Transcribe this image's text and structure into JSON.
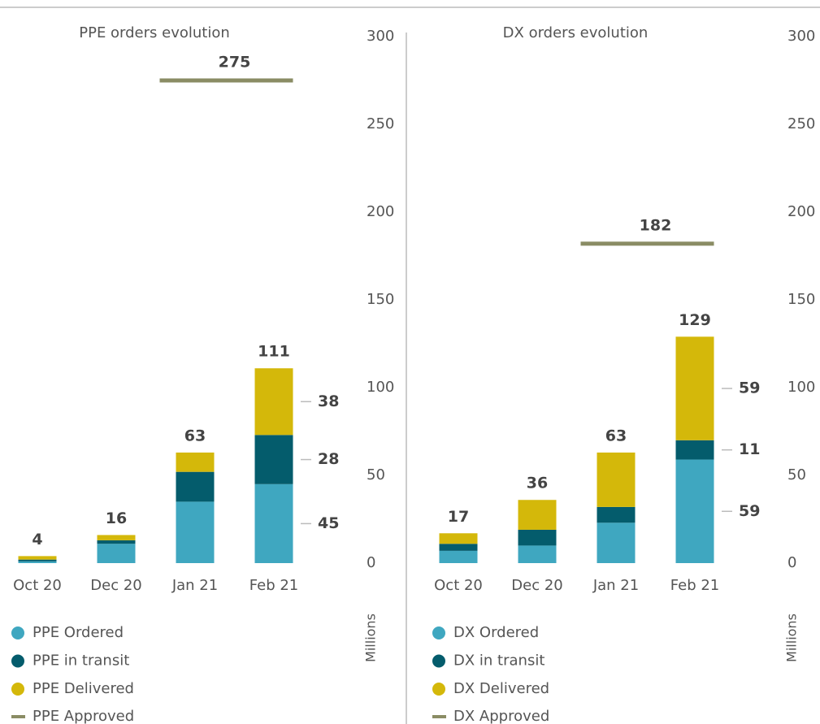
{
  "chart_data": [
    {
      "type": "bar",
      "stacked": true,
      "title": "PPE orders evolution",
      "y_label": "Millions",
      "categories": [
        "Oct 20",
        "Dec 20",
        "Jan 21",
        "Feb 21"
      ],
      "series": [
        {
          "name": "PPE Ordered",
          "color": "#3fa7c0",
          "values": [
            1,
            11,
            35,
            45
          ]
        },
        {
          "name": "PPE in transit",
          "color": "#045c6c",
          "values": [
            1,
            2,
            17,
            28
          ]
        },
        {
          "name": "PPE Delivered",
          "color": "#d4b80a",
          "values": [
            2,
            3,
            11,
            38
          ]
        }
      ],
      "totals": [
        4,
        16,
        63,
        111
      ],
      "approved": {
        "name": "PPE Approved",
        "color": "#8a8c64",
        "values": [
          null,
          null,
          275,
          275
        ]
      },
      "ylim": [
        0,
        300
      ],
      "yticks": [
        0,
        50,
        100,
        150,
        200,
        250,
        300
      ]
    },
    {
      "type": "bar",
      "stacked": true,
      "title": "DX orders evolution",
      "y_label": "Millions",
      "categories": [
        "Oct 20",
        "Dec 20",
        "Jan 21",
        "Feb 21"
      ],
      "series": [
        {
          "name": "DX Ordered",
          "color": "#3fa7c0",
          "values": [
            7,
            10,
            23,
            59
          ]
        },
        {
          "name": "DX in transit",
          "color": "#045c6c",
          "values": [
            4,
            9,
            9,
            11
          ]
        },
        {
          "name": "DX Delivered",
          "color": "#d4b80a",
          "values": [
            6,
            17,
            31,
            59
          ]
        }
      ],
      "totals": [
        17,
        36,
        63,
        129
      ],
      "approved": {
        "name": "DX Approved",
        "color": "#8a8c64",
        "values": [
          null,
          null,
          182,
          182
        ]
      },
      "ylim": [
        0,
        300
      ],
      "yticks": [
        0,
        50,
        100,
        150,
        200,
        250,
        300
      ]
    }
  ]
}
